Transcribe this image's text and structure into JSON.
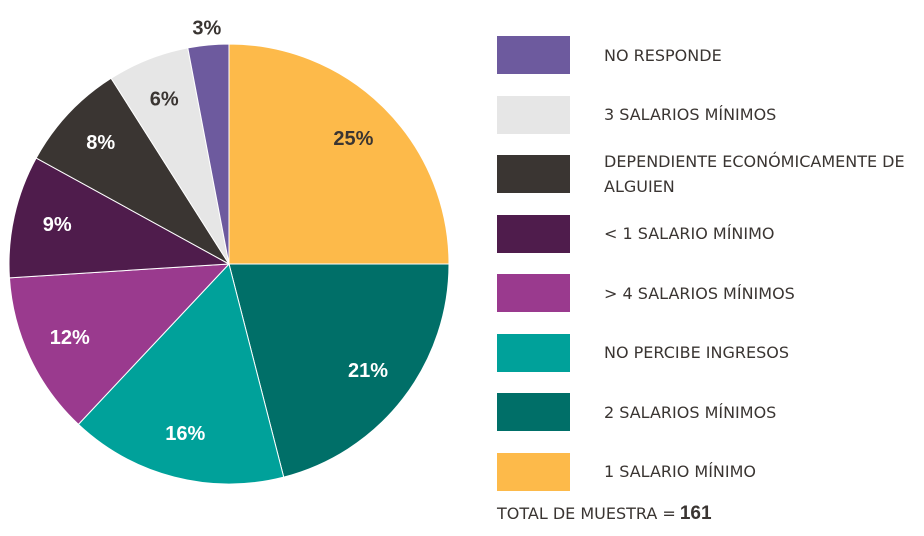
{
  "chart_data": {
    "type": "pie",
    "categories": [
      "1 SALARIO MÍNIMO",
      "2 SALARIOS MÍNIMOS",
      "NO PERCIBE INGRESOS",
      "> 4 SALARIOS MÍNIMOS",
      "< 1 SALARIO MÍNIMO",
      "DEPENDIENTE ECONÓMICAMENTE DE ALGUIEN",
      "3 SALARIOS MÍNIMOS",
      "NO RESPONDE"
    ],
    "values": [
      25,
      21,
      16,
      12,
      9,
      8,
      6,
      3
    ],
    "value_labels": [
      "25%",
      "21%",
      "16%",
      "12%",
      "9%",
      "8%",
      "6%",
      "3%"
    ],
    "colors": [
      "#fdba4a",
      "#006f68",
      "#00a19a",
      "#9a3a8e",
      "#4f1c4c",
      "#3a3532",
      "#e6e6e6",
      "#6d5a9e"
    ],
    "total_label": "TOTAL DE MUESTRA =",
    "total": 161
  }
}
